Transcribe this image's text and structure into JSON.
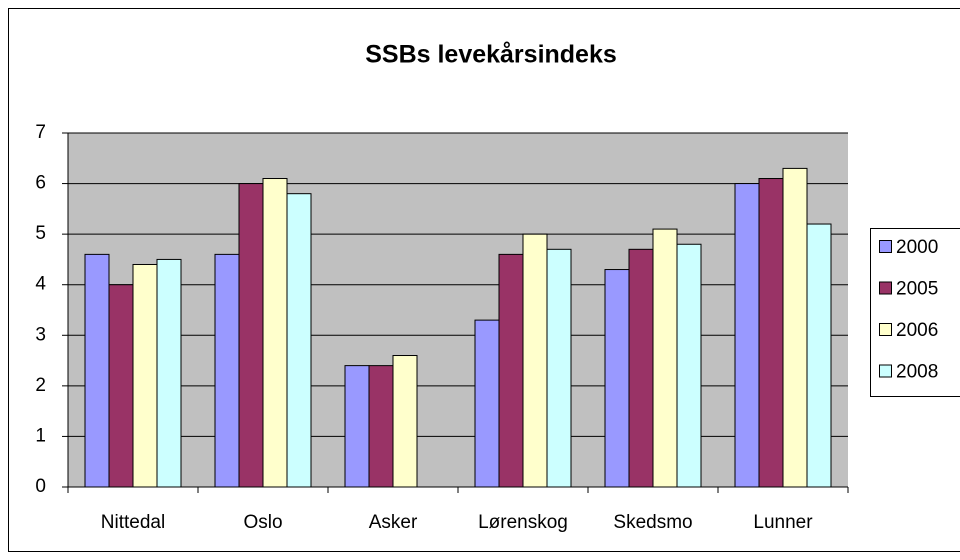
{
  "chart_data": {
    "type": "bar",
    "title": "SSBs levekårsindeks",
    "categories": [
      "Nittedal",
      "Oslo",
      "Asker",
      "Lørenskog",
      "Skedsmo",
      "Lunner"
    ],
    "series": [
      {
        "name": "2000",
        "color": "#9999FF",
        "values": [
          4.6,
          4.6,
          2.4,
          3.3,
          4.3,
          6.0
        ]
      },
      {
        "name": "2005",
        "color": "#993366",
        "values": [
          4.0,
          6.0,
          2.4,
          4.6,
          4.7,
          6.1
        ]
      },
      {
        "name": "2006",
        "color": "#FFFFCC",
        "values": [
          4.4,
          6.1,
          2.6,
          5.0,
          5.1,
          6.3
        ]
      },
      {
        "name": "2008",
        "color": "#CCFFFF",
        "values": [
          4.5,
          5.8,
          null,
          4.7,
          4.8,
          5.2
        ]
      }
    ],
    "ylim": [
      0,
      7
    ],
    "yticks": [
      0,
      1,
      2,
      3,
      4,
      5,
      6,
      7
    ],
    "grid": true,
    "legend": "right"
  }
}
